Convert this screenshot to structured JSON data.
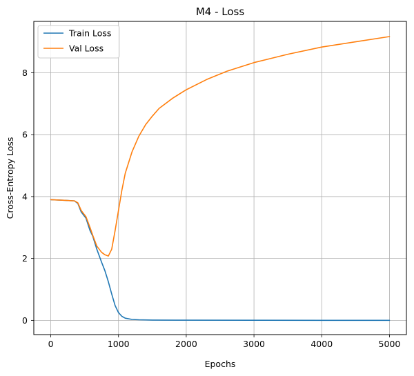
{
  "chart_data": {
    "type": "line",
    "title": "M4 - Loss",
    "xlabel": "Epochs",
    "ylabel": "Cross-Entropy Loss",
    "xlim": [
      -250,
      5250
    ],
    "ylim": [
      -0.46,
      9.66
    ],
    "xticks": [
      0,
      1000,
      2000,
      3000,
      4000,
      5000
    ],
    "yticks": [
      0,
      2,
      4,
      6,
      8
    ],
    "grid": true,
    "legend": "top-left",
    "series": [
      {
        "name": "Train Loss",
        "color": "#1f77b4",
        "x": [
          0,
          200,
          350,
          400,
          450,
          520,
          580,
          620,
          680,
          750,
          800,
          850,
          900,
          950,
          1000,
          1050,
          1100,
          1200,
          1300,
          1500,
          2000,
          3000,
          4000,
          5000
        ],
        "y": [
          3.9,
          3.88,
          3.86,
          3.78,
          3.5,
          3.3,
          2.9,
          2.72,
          2.3,
          1.88,
          1.6,
          1.25,
          0.85,
          0.48,
          0.25,
          0.13,
          0.07,
          0.03,
          0.02,
          0.01,
          0.005,
          0.003,
          0.002,
          0.002
        ]
      },
      {
        "name": "Val Loss",
        "color": "#ff7f0e",
        "x": [
          0,
          200,
          350,
          400,
          450,
          520,
          580,
          620,
          680,
          750,
          800,
          850,
          900,
          950,
          1000,
          1050,
          1100,
          1200,
          1300,
          1400,
          1500,
          1600,
          1800,
          2000,
          2300,
          2600,
          3000,
          3500,
          4000,
          4500,
          5000
        ],
        "y": [
          3.9,
          3.88,
          3.86,
          3.8,
          3.55,
          3.35,
          3.0,
          2.75,
          2.4,
          2.2,
          2.12,
          2.08,
          2.3,
          2.9,
          3.55,
          4.2,
          4.75,
          5.45,
          5.95,
          6.32,
          6.6,
          6.85,
          7.18,
          7.45,
          7.78,
          8.05,
          8.33,
          8.6,
          8.83,
          9.0,
          9.17
        ]
      }
    ]
  }
}
